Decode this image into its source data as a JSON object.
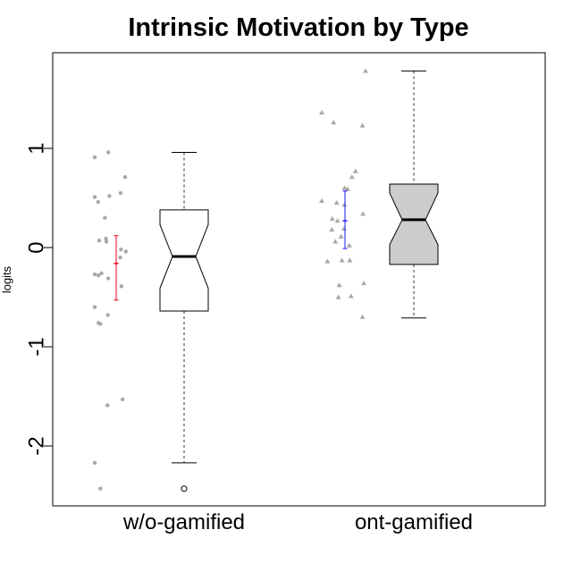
{
  "chart_data": {
    "type": "boxplot",
    "title": "Intrinsic Motivation by Type",
    "ylabel": "logits",
    "xlabel": "",
    "ylim": [
      -2.6,
      1.95
    ],
    "yticks": [
      1,
      0,
      -1,
      -2
    ],
    "ytick_labels": [
      "1",
      "0",
      "-1",
      "-2"
    ],
    "notched": true,
    "grid": false,
    "groups": [
      {
        "category": "w/o-gamified",
        "box_fill": "#ffffff",
        "whisker_low": -2.17,
        "q1": -0.64,
        "median": -0.09,
        "q3": 0.38,
        "whisker_high": 0.96,
        "notch_low": -0.41,
        "notch_high": 0.23,
        "outliers": [
          -2.43
        ],
        "mean": -0.16,
        "ci_low": -0.53,
        "ci_high": 0.12,
        "ci_color": "#e8001c",
        "point_shape": "circle",
        "points": [
          {
            "j": 0.0,
            "y": 0.91
          },
          {
            "j": 0.36,
            "y": 0.96
          },
          {
            "j": 0.81,
            "y": 0.71
          },
          {
            "j": 0.0,
            "y": 0.51
          },
          {
            "j": 0.09,
            "y": 0.46
          },
          {
            "j": 0.39,
            "y": 0.52
          },
          {
            "j": 0.69,
            "y": 0.55
          },
          {
            "j": 0.27,
            "y": 0.3
          },
          {
            "j": 0.12,
            "y": 0.07
          },
          {
            "j": 0.3,
            "y": 0.09
          },
          {
            "j": 0.31,
            "y": 0.06
          },
          {
            "j": 0.7,
            "y": -0.02
          },
          {
            "j": 0.83,
            "y": -0.04
          },
          {
            "j": 0.68,
            "y": -0.1
          },
          {
            "j": 0.0,
            "y": -0.27
          },
          {
            "j": 0.1,
            "y": -0.28
          },
          {
            "j": 0.18,
            "y": -0.26
          },
          {
            "j": 0.36,
            "y": -0.31
          },
          {
            "j": 0.71,
            "y": -0.39
          },
          {
            "j": 0.0,
            "y": -0.6
          },
          {
            "j": 0.35,
            "y": -0.68
          },
          {
            "j": 0.1,
            "y": -0.76
          },
          {
            "j": 0.15,
            "y": -0.77
          },
          {
            "j": 0.74,
            "y": -1.53
          },
          {
            "j": 0.34,
            "y": -1.59
          },
          {
            "j": 0.0,
            "y": -2.17
          },
          {
            "j": 0.15,
            "y": -2.43
          }
        ]
      },
      {
        "category": "ont-gamified",
        "box_fill": "#cccccc",
        "whisker_low": -0.71,
        "q1": -0.17,
        "median": 0.28,
        "q3": 0.64,
        "whisker_high": 1.78,
        "notch_low": 0.03,
        "notch_high": 0.55,
        "outliers": [],
        "mean": 0.27,
        "ci_low": -0.01,
        "ci_high": 0.57,
        "ci_color": "#1a1aff",
        "point_shape": "triangle",
        "points": [
          {
            "j": 1.0,
            "y": 1.78
          },
          {
            "j": 0.0,
            "y": 1.36
          },
          {
            "j": 0.27,
            "y": 1.26
          },
          {
            "j": 0.93,
            "y": 1.23
          },
          {
            "j": 0.77,
            "y": 0.77
          },
          {
            "j": 0.69,
            "y": 0.71
          },
          {
            "j": 0.52,
            "y": 0.6
          },
          {
            "j": 0.59,
            "y": 0.59
          },
          {
            "j": 0.0,
            "y": 0.47
          },
          {
            "j": 0.34,
            "y": 0.45
          },
          {
            "j": 0.52,
            "y": 0.43
          },
          {
            "j": 0.94,
            "y": 0.34
          },
          {
            "j": 0.24,
            "y": 0.29
          },
          {
            "j": 0.36,
            "y": 0.27
          },
          {
            "j": 0.23,
            "y": 0.18
          },
          {
            "j": 0.51,
            "y": 0.19
          },
          {
            "j": 0.44,
            "y": 0.11
          },
          {
            "j": 0.31,
            "y": 0.06
          },
          {
            "j": 0.63,
            "y": 0.02
          },
          {
            "j": 0.46,
            "y": -0.13
          },
          {
            "j": 0.64,
            "y": -0.13
          },
          {
            "j": 0.13,
            "y": -0.14
          },
          {
            "j": 0.96,
            "y": -0.36
          },
          {
            "j": 0.4,
            "y": -0.38
          },
          {
            "j": 0.38,
            "y": -0.5
          },
          {
            "j": 0.67,
            "y": -0.49
          },
          {
            "j": 0.93,
            "y": -0.7
          }
        ]
      }
    ]
  },
  "colors": {
    "jitter_points": "#a8a8a8",
    "axis": "#000000",
    "whisker": "#555555"
  }
}
